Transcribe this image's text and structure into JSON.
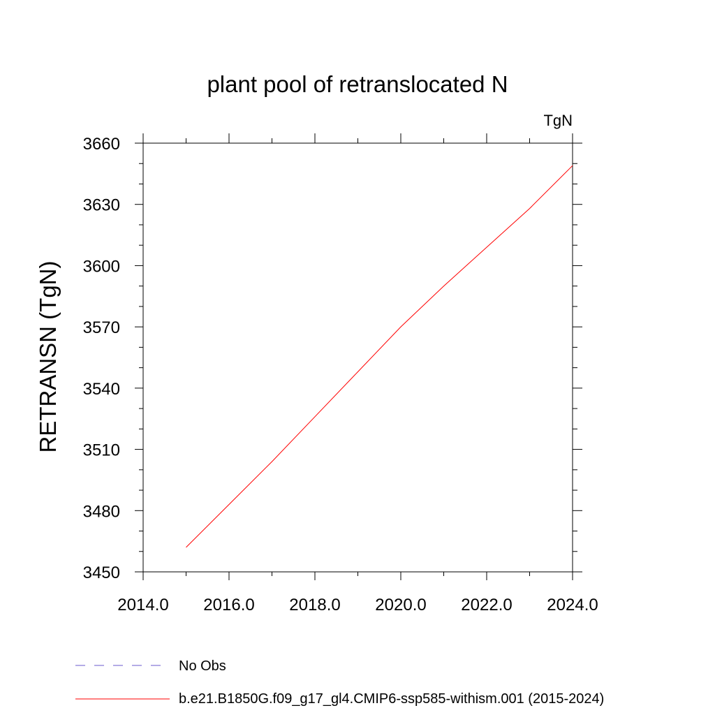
{
  "chart_data": {
    "type": "line",
    "title": "plant pool of retranslocated N",
    "units": "TgN",
    "ylabel": "RETRANSN  (TgN)",
    "xlabel": "",
    "xlim": [
      2014.0,
      2024.0
    ],
    "ylim": [
      3450,
      3660
    ],
    "x_ticks": [
      2014.0,
      2016.0,
      2018.0,
      2020.0,
      2022.0,
      2024.0
    ],
    "x_tick_labels": [
      "2014.0",
      "2016.0",
      "2018.0",
      "2020.0",
      "2022.0",
      "2024.0"
    ],
    "y_ticks": [
      3450,
      3480,
      3510,
      3540,
      3570,
      3600,
      3630,
      3660
    ],
    "y_tick_labels": [
      "3450",
      "3480",
      "3510",
      "3540",
      "3570",
      "3600",
      "3630",
      "3660"
    ],
    "grid": false,
    "legend_position": "bottom",
    "series": [
      {
        "name": "b.e21.B1850G.f09_g17_gl4.CMIP6-ssp585-withism.001 (2015-2024)",
        "color": "#ff0000",
        "style": "solid",
        "x": [
          2015,
          2016,
          2017,
          2018,
          2019,
          2020,
          2021,
          2022,
          2023,
          2024
        ],
        "y": [
          3462,
          3483,
          3504,
          3526,
          3548,
          3570,
          3590,
          3609,
          3628,
          3649
        ]
      }
    ],
    "legend": [
      {
        "label": "No Obs",
        "color": "#6a5acd",
        "style": "dashed"
      },
      {
        "label": "b.e21.B1850G.f09_g17_gl4.CMIP6-ssp585-withism.001 (2015-2024)",
        "color": "#ff0000",
        "style": "solid"
      }
    ]
  }
}
